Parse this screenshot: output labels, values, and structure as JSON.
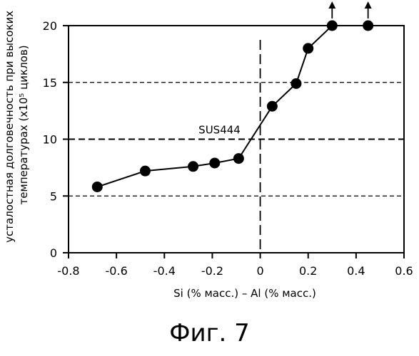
{
  "chart_data": {
    "type": "line",
    "title": "",
    "xlabel": "Si (% масс.) – Al (% масс.)",
    "ylabel_lines": [
      "усталостная долговечность при высоких",
      "температурах  (x10⁵ циклов)"
    ],
    "xlim": [
      -0.8,
      0.6
    ],
    "ylim": [
      0,
      20
    ],
    "xticks": [
      -0.8,
      -0.6,
      -0.4,
      -0.2,
      0,
      0.2,
      0.4,
      0.6
    ],
    "xtick_labels": [
      "-0.8",
      "-0.6",
      "-0.4",
      "-0.2",
      "0",
      "0.2",
      "0.4",
      "0.6"
    ],
    "yticks": [
      0,
      5,
      10,
      15,
      20
    ],
    "ytick_labels": [
      "0",
      "5",
      "10",
      "15",
      "20"
    ],
    "grid": false,
    "reference_lines": {
      "horizontal": [
        5,
        10,
        15,
        20
      ],
      "vertical": [
        0
      ]
    },
    "series": [
      {
        "x": [
          -0.68,
          -0.48,
          -0.28,
          -0.19,
          -0.09,
          0.05,
          0.15,
          0.2,
          0.3,
          0.45
        ],
        "y": [
          5.8,
          7.2,
          7.6,
          7.9,
          8.3,
          12.9,
          14.9,
          18,
          20,
          20
        ]
      }
    ],
    "arrows_up_at_x": [
      0.3,
      0.45
    ],
    "annotations": [
      {
        "text": "SUS444",
        "x": -0.17,
        "y": 10
      }
    ]
  },
  "caption": "Фиг. 7"
}
